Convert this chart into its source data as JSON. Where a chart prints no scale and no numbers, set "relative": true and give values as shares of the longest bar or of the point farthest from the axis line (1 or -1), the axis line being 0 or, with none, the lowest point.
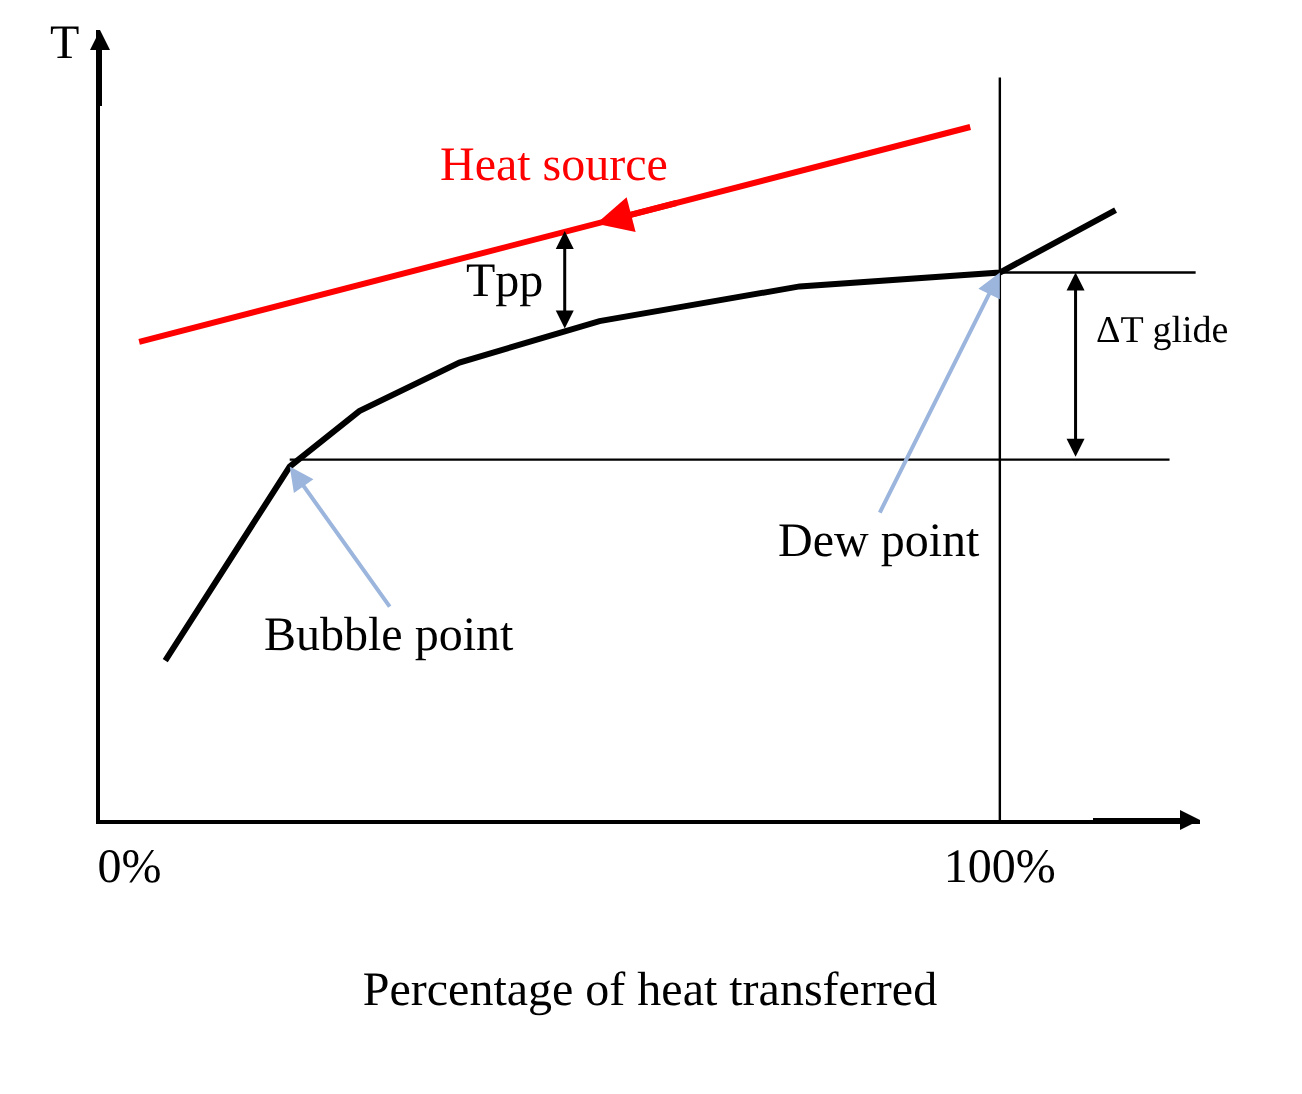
{
  "chart_data": {
    "type": "line",
    "relative": true,
    "xlabel": "Percentage of heat transferred",
    "ylabel": "T",
    "xlim": [
      -3.4,
      123
    ],
    "xticks": [
      {
        "value": 0,
        "label": "0%"
      },
      {
        "value": 100,
        "label": "100%"
      }
    ],
    "tick_labels": "x",
    "grid": false,
    "legend": false,
    "marker": "none",
    "line_style": "solid",
    "series": [
      {
        "name": "Heat source",
        "color": "#ff0000",
        "x": [
          1.1,
          96.6
        ],
        "values": [
          0.69,
          1.0
        ]
      },
      {
        "color": "#000000",
        "x": [
          4.1,
          18.4,
          26.4,
          37.9,
          54.0,
          77.0,
          100,
          113.3
        ],
        "values": [
          0.23,
          0.51,
          0.59,
          0.66,
          0.72,
          0.77,
          0.79,
          0.88
        ]
      },
      {
        "color": "#000000",
        "x": [
          100,
          122.5
        ],
        "values": [
          0.79,
          0.79
        ]
      },
      {
        "color": "#000000",
        "x": [
          18.4,
          119.5
        ],
        "values": [
          0.52,
          0.52
        ]
      }
    ],
    "ref_lines": [
      {
        "axis": "x",
        "value": 100,
        "color": "#000000"
      }
    ],
    "annotations": [
      {
        "text": "Tpp",
        "x": 50,
        "y": 0.85
      },
      {
        "text": "ΔT glide",
        "x": 108.7,
        "y": 0.79
      },
      {
        "text": "Dew point",
        "x": 100,
        "y": 0.79
      },
      {
        "text": "Bubble point",
        "x": 18.4,
        "y": 0.51
      }
    ]
  }
}
